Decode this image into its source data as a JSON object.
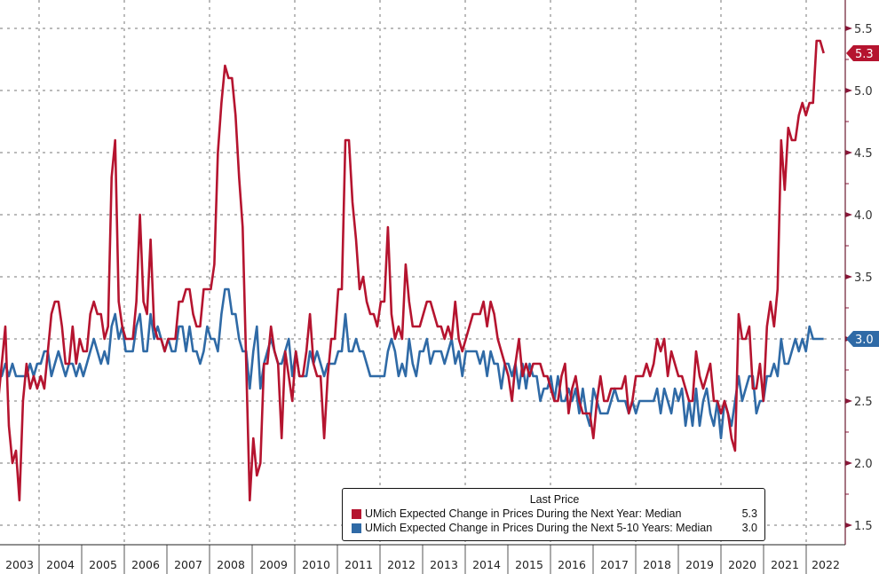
{
  "chart_data": {
    "type": "line",
    "title": "",
    "frequency": "monthly",
    "start": "2003-01",
    "x_tick_labels": [
      "2003",
      "2004",
      "2005",
      "2006",
      "2007",
      "2008",
      "2009",
      "2010",
      "2011",
      "2012",
      "2013",
      "2014",
      "2015",
      "2016",
      "2017",
      "2018",
      "2019",
      "2020",
      "2021",
      "2022"
    ],
    "y_axis": {
      "position": "right",
      "ylim": [
        1.35,
        5.73
      ],
      "ticks": [
        "1.5",
        "2.0",
        "2.5",
        "3.0",
        "3.5",
        "4.0",
        "4.5",
        "5.0",
        "5.5"
      ]
    },
    "grid": true,
    "legend": {
      "title": "Last Price",
      "placement": "bottom-right"
    },
    "series": [
      {
        "name": "UMich Expected Change in Prices During the Next Year: Median",
        "last_value": "5.3",
        "color": "#b5142f",
        "values": [
          2.5,
          2.8,
          3.1,
          2.3,
          2.0,
          2.1,
          1.7,
          2.5,
          2.8,
          2.6,
          2.7,
          2.6,
          2.7,
          2.6,
          2.9,
          3.2,
          3.3,
          3.3,
          3.1,
          2.8,
          2.8,
          3.1,
          2.8,
          3.0,
          2.9,
          2.9,
          3.2,
          3.3,
          3.2,
          3.2,
          3.0,
          3.1,
          4.3,
          4.6,
          3.3,
          3.1,
          3.0,
          3.0,
          3.0,
          3.3,
          4.0,
          3.3,
          3.2,
          3.8,
          3.1,
          3.0,
          3.0,
          2.9,
          3.0,
          3.0,
          3.0,
          3.3,
          3.3,
          3.4,
          3.4,
          3.2,
          3.1,
          3.1,
          3.4,
          3.4,
          3.4,
          3.6,
          4.5,
          4.9,
          5.2,
          5.1,
          5.1,
          4.8,
          4.3,
          3.9,
          2.8,
          1.7,
          2.2,
          1.9,
          2.0,
          2.8,
          2.8,
          3.1,
          2.9,
          2.8,
          2.2,
          2.9,
          2.7,
          2.5,
          2.9,
          2.7,
          2.7,
          2.9,
          3.2,
          2.8,
          2.7,
          2.7,
          2.2,
          2.7,
          3.0,
          3.0,
          3.4,
          3.4,
          4.6,
          4.6,
          4.1,
          3.8,
          3.4,
          3.5,
          3.3,
          3.2,
          3.2,
          3.1,
          3.3,
          3.3,
          3.9,
          3.2,
          3.0,
          3.1,
          3.0,
          3.6,
          3.3,
          3.1,
          3.1,
          3.1,
          3.2,
          3.3,
          3.3,
          3.2,
          3.1,
          3.1,
          3.0,
          3.1,
          3.0,
          3.3,
          3.0,
          2.9,
          3.0,
          3.1,
          3.2,
          3.2,
          3.2,
          3.3,
          3.1,
          3.3,
          3.2,
          3.0,
          2.9,
          2.8,
          2.7,
          2.5,
          2.8,
          3.0,
          2.7,
          2.8,
          2.7,
          2.8,
          2.8,
          2.8,
          2.7,
          2.7,
          2.6,
          2.5,
          2.5,
          2.7,
          2.8,
          2.4,
          2.6,
          2.7,
          2.5,
          2.4,
          2.4,
          2.4,
          2.2,
          2.5,
          2.7,
          2.5,
          2.5,
          2.6,
          2.6,
          2.6,
          2.6,
          2.7,
          2.4,
          2.5,
          2.7,
          2.7,
          2.7,
          2.8,
          2.7,
          2.8,
          3.0,
          2.9,
          3.0,
          2.7,
          2.9,
          2.8,
          2.7,
          2.7,
          2.6,
          2.5,
          2.5,
          2.9,
          2.7,
          2.6,
          2.7,
          2.8,
          2.5,
          2.5,
          2.4,
          2.5,
          2.4,
          2.2,
          2.1,
          3.2,
          3.0,
          3.0,
          3.1,
          2.6,
          2.6,
          2.8,
          2.5,
          3.1,
          3.3,
          3.1,
          3.4,
          4.6,
          4.2,
          4.7,
          4.6,
          4.6,
          4.8,
          4.9,
          4.8,
          4.9,
          4.9,
          5.4,
          5.4,
          5.3
        ]
      },
      {
        "name": "UMich Expected Change in Prices During the Next 5-10 Years: Median",
        "last_value": "3.0",
        "color": "#2f6aa6",
        "values": [
          2.7,
          2.7,
          2.8,
          2.7,
          2.8,
          2.7,
          2.7,
          2.7,
          2.7,
          2.8,
          2.7,
          2.8,
          2.8,
          2.9,
          2.9,
          2.7,
          2.8,
          2.9,
          2.8,
          2.7,
          2.8,
          2.8,
          2.7,
          2.8,
          2.7,
          2.8,
          2.9,
          3.0,
          2.9,
          2.8,
          2.9,
          2.8,
          3.1,
          3.2,
          3.0,
          3.1,
          2.9,
          2.9,
          2.9,
          3.1,
          3.2,
          2.9,
          2.9,
          3.2,
          3.0,
          3.1,
          3.0,
          2.9,
          3.0,
          2.9,
          2.9,
          3.1,
          3.1,
          2.9,
          3.1,
          2.9,
          2.9,
          2.8,
          2.9,
          3.1,
          3.0,
          3.0,
          2.9,
          3.2,
          3.4,
          3.4,
          3.2,
          3.2,
          3.0,
          2.9,
          2.9,
          2.6,
          2.9,
          3.1,
          2.6,
          2.8,
          2.9,
          3.0,
          2.9,
          2.8,
          2.8,
          2.9,
          3.0,
          2.7,
          2.9,
          2.7,
          2.7,
          2.7,
          2.9,
          2.8,
          2.9,
          2.8,
          2.7,
          2.8,
          2.8,
          2.8,
          2.9,
          2.9,
          3.2,
          2.9,
          2.9,
          3.0,
          2.9,
          2.9,
          2.8,
          2.7,
          2.7,
          2.7,
          2.7,
          2.7,
          2.9,
          3.0,
          2.9,
          2.7,
          2.8,
          2.7,
          3.0,
          2.8,
          2.7,
          2.9,
          2.9,
          3.0,
          2.8,
          2.9,
          2.9,
          2.9,
          2.8,
          2.9,
          3.0,
          2.8,
          2.9,
          2.7,
          2.9,
          2.9,
          2.9,
          2.9,
          2.8,
          2.9,
          2.7,
          2.9,
          2.8,
          2.8,
          2.6,
          2.8,
          2.8,
          2.7,
          2.8,
          2.6,
          2.8,
          2.6,
          2.8,
          2.7,
          2.7,
          2.5,
          2.6,
          2.6,
          2.7,
          2.5,
          2.7,
          2.5,
          2.5,
          2.6,
          2.5,
          2.6,
          2.4,
          2.6,
          2.4,
          2.3,
          2.6,
          2.5,
          2.4,
          2.4,
          2.4,
          2.5,
          2.6,
          2.5,
          2.5,
          2.5,
          2.4,
          2.5,
          2.4,
          2.5,
          2.5,
          2.5,
          2.5,
          2.5,
          2.6,
          2.4,
          2.6,
          2.5,
          2.4,
          2.6,
          2.5,
          2.6,
          2.3,
          2.5,
          2.3,
          2.6,
          2.3,
          2.5,
          2.6,
          2.4,
          2.3,
          2.5,
          2.2,
          2.5,
          2.4,
          2.3,
          2.5,
          2.7,
          2.5,
          2.6,
          2.7,
          2.7,
          2.4,
          2.5,
          2.5,
          2.7,
          2.7,
          2.8,
          2.7,
          3.0,
          2.8,
          2.8,
          2.9,
          3.0,
          2.9,
          3.0,
          2.9,
          3.1,
          3.0,
          3.0,
          3.0,
          3.0
        ]
      }
    ]
  }
}
